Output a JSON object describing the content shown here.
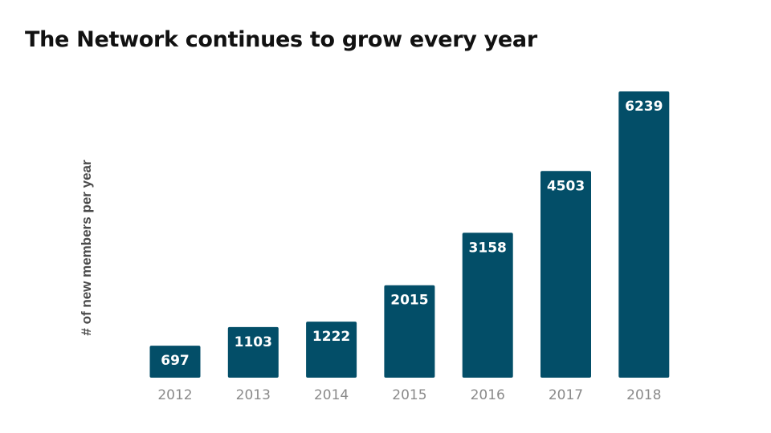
{
  "slide": {
    "title": "The Network continues to grow every year"
  },
  "chart_data": {
    "type": "bar",
    "title": "",
    "xlabel": "",
    "ylabel": "# of new members per year",
    "categories": [
      "2012",
      "2013",
      "2014",
      "2015",
      "2016",
      "2017",
      "2018"
    ],
    "values": [
      697,
      1103,
      1222,
      2015,
      3158,
      4503,
      6239
    ],
    "ylim": [
      0,
      6239
    ],
    "grid": false,
    "legend": "none",
    "data_labels": "inside-top",
    "bar_color": "#034e68",
    "label_color": "#ffffff",
    "tick_color": "#8a8a8a"
  }
}
